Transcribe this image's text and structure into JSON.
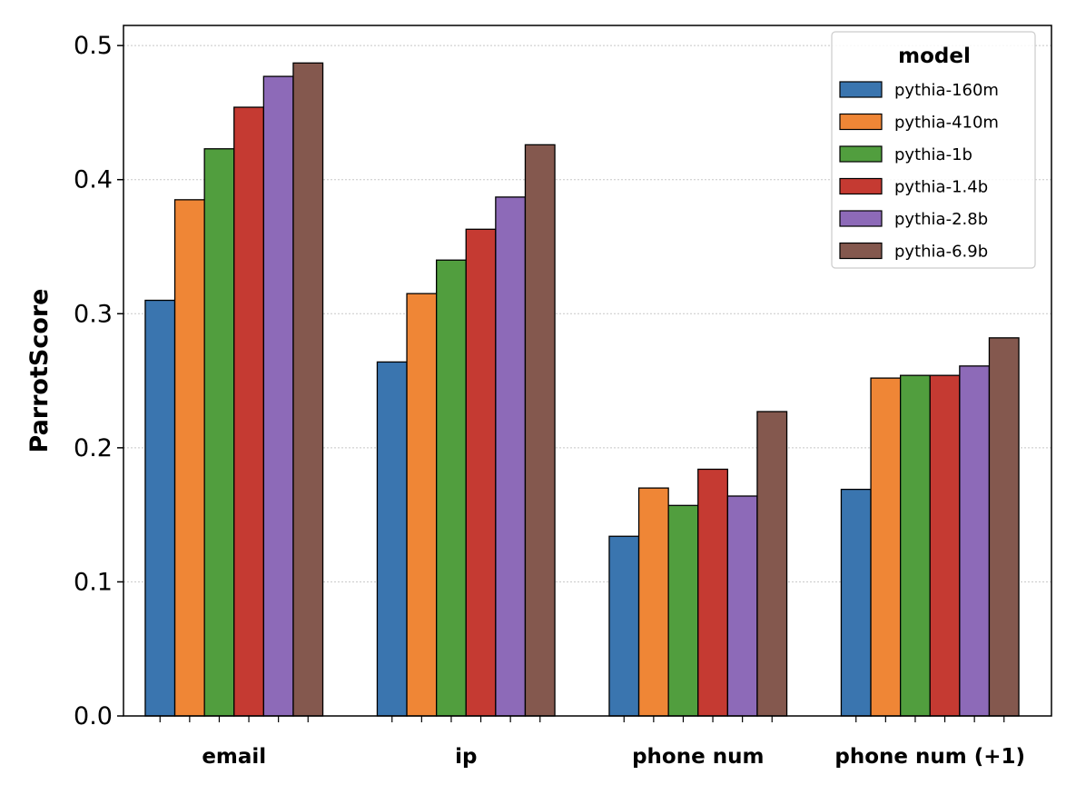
{
  "chart_data": {
    "type": "bar",
    "title": "",
    "xlabel": "",
    "ylabel": "ParrotScore",
    "ylim": [
      0,
      0.515
    ],
    "yticks": [
      "0.0",
      "0.1",
      "0.2",
      "0.3",
      "0.4",
      "0.5"
    ],
    "ytick_values": [
      0,
      0.1,
      0.2,
      0.3,
      0.4,
      0.5
    ],
    "grid": "horizontal dotted",
    "legend_title": "model",
    "legend_position": "top-right",
    "categories": [
      "email",
      "ip",
      "phone num",
      "phone num (+1)"
    ],
    "series": [
      {
        "name": "pythia-160m",
        "color": "#3a75af",
        "values": [
          0.31,
          0.264,
          0.134,
          0.169
        ]
      },
      {
        "name": "pythia-410m",
        "color": "#ef8636",
        "values": [
          0.385,
          0.315,
          0.17,
          0.252
        ]
      },
      {
        "name": "pythia-1b",
        "color": "#519e3e",
        "values": [
          0.423,
          0.34,
          0.157,
          0.254
        ]
      },
      {
        "name": "pythia-1.4b",
        "color": "#c53a32",
        "values": [
          0.454,
          0.363,
          0.184,
          0.254
        ]
      },
      {
        "name": "pythia-2.8b",
        "color": "#8d6ab8",
        "values": [
          0.477,
          0.387,
          0.164,
          0.261
        ]
      },
      {
        "name": "pythia-6.9b",
        "color": "#84584e",
        "values": [
          0.487,
          0.426,
          0.227,
          0.282
        ]
      }
    ]
  }
}
